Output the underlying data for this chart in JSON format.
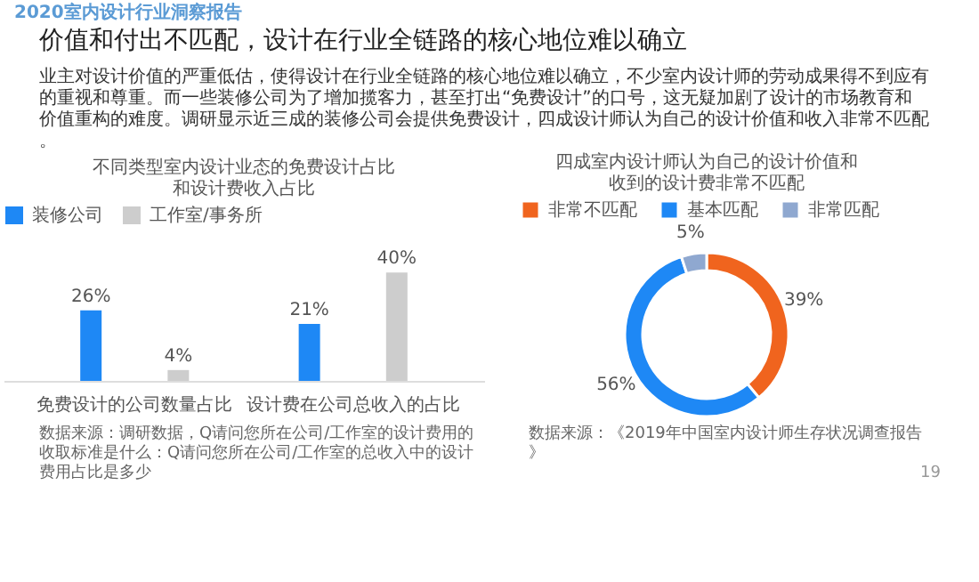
{
  "chart_data": [
    {
      "type": "bar",
      "title": "不同类型室内设计业态的免费设计占比和设计费收入占比",
      "categories": [
        "免费设计的公司数量占比",
        "设计费在公司总收入的占比"
      ],
      "series": [
        {
          "name": "装修公司",
          "color": "#1e88f5",
          "values": [
            26,
            21
          ],
          "value_labels": [
            "26%",
            "21%"
          ]
        },
        {
          "name": "工作室/事务所",
          "color": "#cdcdcd",
          "values": [
            4,
            40
          ],
          "value_labels": [
            "4%",
            "40%"
          ]
        }
      ],
      "legend": "top",
      "tick_labels": "x",
      "grid": false,
      "annotations": [
        "2020室内设计行业洞察报告",
        "价值和付出不匹配，设计在行业全链路的核心地位难以确立",
        "业主对设计价值的严重低估，使得设计在行业全链路的核心地位难以确立，不少室内设计师的劳动成果得不到应有的重视和尊重。而一些装修公司为了增加揽客力，甚至打出“免费设计”的口号，这无疑加剧了设计的市场教育和价值重构的难度。调研显示近三成的装修公司会提供免费设计，四成设计师认为自己的设计价值和收入非常不匹配。",
        "数据来源：调研数据，Q请问您所在公司/工作室的设计费用的收取标准是什么：Q请问您所在公司/工作室的总收入中的设计费用占比是多少"
      ]
    },
    {
      "type": "donut",
      "title": "四成室内设计师认为自己的设计价值和收到的设计费非常不匹配",
      "categories": [
        "非常不匹配",
        "基本匹配",
        "非常匹配"
      ],
      "values": [
        39,
        56,
        5
      ],
      "value_labels": [
        "39%",
        "56%",
        "5%"
      ],
      "colors": [
        "#f0641e",
        "#1e88f5",
        "#8fa8d0"
      ],
      "legend": "top",
      "annotations": [
        "数据来源：《2019年中国室内设计师生存状况调查报告》",
        "19"
      ]
    }
  ]
}
